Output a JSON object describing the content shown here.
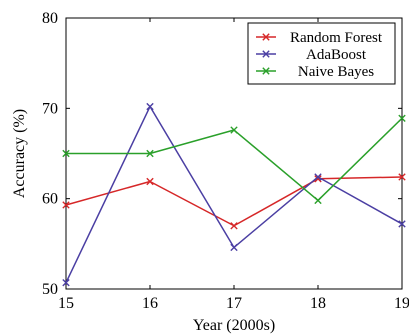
{
  "chart_data": {
    "type": "line",
    "x": [
      15,
      16,
      17,
      18,
      19
    ],
    "xlim": [
      15,
      19
    ],
    "ylim": [
      50,
      80
    ],
    "x_ticks": [
      "15",
      "16",
      "17",
      "18",
      "19"
    ],
    "y_ticks": [
      "50",
      "60",
      "70",
      "80"
    ],
    "xlabel": "Year (2000s)",
    "ylabel": "Accuracy (%)",
    "legend_placement": "top-right",
    "grid": false,
    "series": [
      {
        "name": "Random Forest",
        "color": "#d62728",
        "values": [
          59.3,
          61.9,
          57.0,
          62.2,
          62.4
        ]
      },
      {
        "name": "AdaBoost",
        "color": "#4b3fa3",
        "values": [
          50.7,
          70.2,
          54.6,
          62.4,
          57.2
        ]
      },
      {
        "name": "Naive Bayes",
        "color": "#2aa02a",
        "values": [
          65.0,
          65.0,
          67.6,
          59.8,
          68.9
        ]
      }
    ]
  }
}
